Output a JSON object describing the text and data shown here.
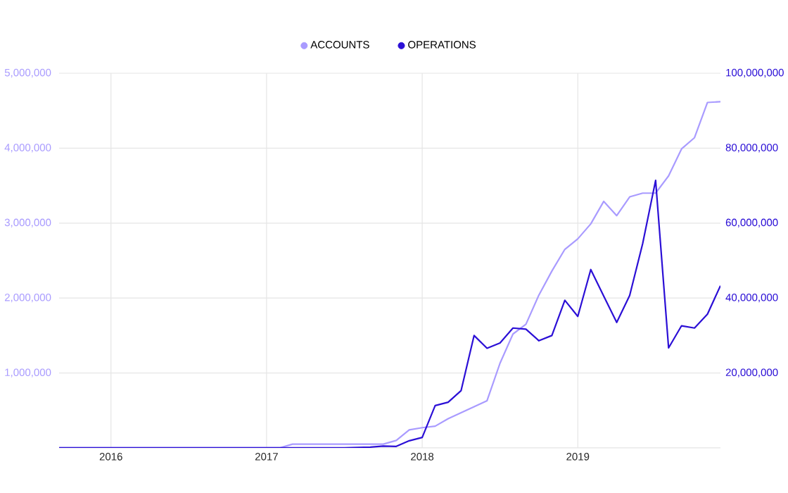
{
  "chart_data": {
    "type": "line",
    "x": [
      "2015-09",
      "2015-10",
      "2015-11",
      "2015-12",
      "2016-01",
      "2016-02",
      "2016-03",
      "2016-04",
      "2016-05",
      "2016-06",
      "2016-07",
      "2016-08",
      "2016-09",
      "2016-10",
      "2016-11",
      "2016-12",
      "2017-01",
      "2017-02",
      "2017-03",
      "2017-04",
      "2017-05",
      "2017-06",
      "2017-07",
      "2017-08",
      "2017-09",
      "2017-10",
      "2017-11",
      "2017-12",
      "2018-01",
      "2018-02",
      "2018-03",
      "2018-04",
      "2018-05",
      "2018-06",
      "2018-07",
      "2018-08",
      "2018-09",
      "2018-10",
      "2018-11",
      "2018-12",
      "2019-01",
      "2019-02",
      "2019-03",
      "2019-04",
      "2019-05",
      "2019-06",
      "2019-07",
      "2019-08",
      "2019-09",
      "2019-10",
      "2019-11",
      "2019-12"
    ],
    "series": [
      {
        "name": "ACCOUNTS",
        "color": "#a99bff",
        "values": [
          0,
          0,
          0,
          0,
          0,
          0,
          0,
          0,
          0,
          0,
          0,
          0,
          0,
          0,
          0,
          0,
          0,
          0,
          50000,
          50000,
          50000,
          50000,
          50000,
          50000,
          50000,
          50000,
          100000,
          240000,
          270000,
          290000,
          390000,
          470000,
          550000,
          630000,
          1130000,
          1520000,
          1650000,
          2040000,
          2360000,
          2650000,
          2790000,
          2990000,
          3290000,
          3100000,
          3350000,
          3400000,
          3400000,
          3630000,
          3990000,
          4140000,
          4610000,
          4620000
        ]
      },
      {
        "name": "OPERATIONS",
        "color": "#2b0fd6",
        "axis": "y2",
        "values": [
          0,
          0,
          0,
          0,
          0,
          0,
          0,
          0,
          0,
          0,
          0,
          0,
          0,
          0,
          0,
          0,
          0,
          0,
          0,
          0,
          0,
          0,
          0,
          100000,
          200000,
          500000,
          400000,
          1900000,
          2800000,
          11300000,
          12200000,
          15300000,
          30000000,
          26600000,
          28000000,
          32000000,
          31700000,
          28600000,
          30000000,
          39400000,
          35100000,
          47600000,
          40500000,
          33500000,
          40700000,
          54500000,
          71400000,
          26700000,
          32600000,
          32000000,
          35700000,
          43300000
        ]
      }
    ],
    "xlim": [
      "2015-09",
      "2019-12"
    ],
    "xticks": [
      {
        "value": "2016-01",
        "label": "2016"
      },
      {
        "value": "2017-01",
        "label": "2017"
      },
      {
        "value": "2018-01",
        "label": "2018"
      },
      {
        "value": "2019-01",
        "label": "2019"
      }
    ],
    "ylim": [
      0,
      5000000
    ],
    "yticks": [
      {
        "value": 0,
        "label": null
      },
      {
        "value": 1000000,
        "label": "1,000,000"
      },
      {
        "value": 2000000,
        "label": "2,000,000"
      },
      {
        "value": 3000000,
        "label": "3,000,000"
      },
      {
        "value": 4000000,
        "label": "4,000,000"
      },
      {
        "value": 5000000,
        "label": "5,000,000"
      }
    ],
    "y2lim": [
      0,
      100000000
    ],
    "y2ticks": [
      {
        "value": 0,
        "label": null
      },
      {
        "value": 20000000,
        "label": "20,000,000"
      },
      {
        "value": 40000000,
        "label": "40,000,000"
      },
      {
        "value": 60000000,
        "label": "60,000,000"
      },
      {
        "value": 80000000,
        "label": "80,000,000"
      },
      {
        "value": 100000000,
        "label": "100,000,000"
      }
    ],
    "grid": true,
    "legend": "top"
  }
}
